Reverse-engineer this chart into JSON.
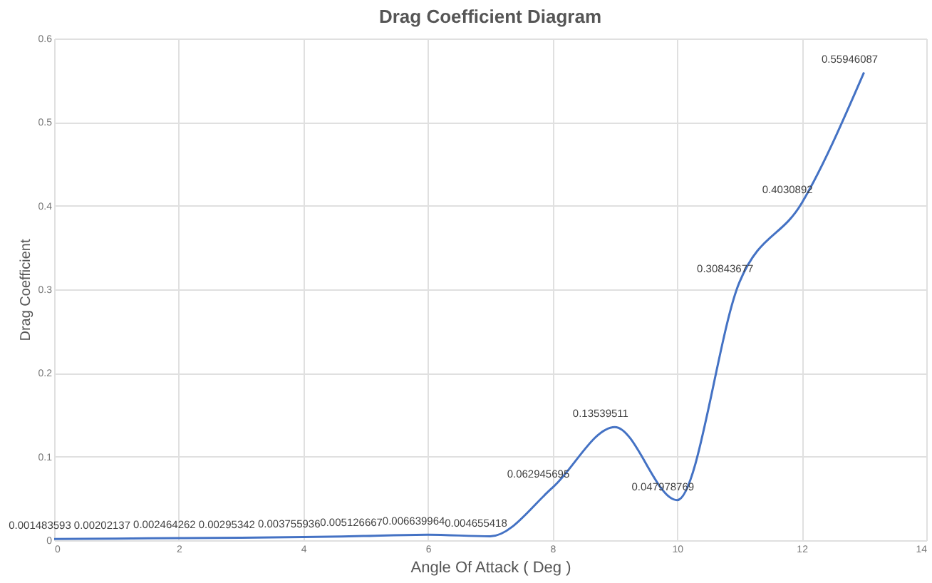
{
  "chart_data": {
    "type": "line",
    "title": "Drag Coefficient Diagram",
    "xlabel": "Angle Of Attack ( Deg )",
    "ylabel": "Drag Coefficient",
    "x": [
      0,
      1,
      2,
      3,
      4,
      5,
      6,
      7,
      8,
      9,
      10,
      11,
      12,
      13
    ],
    "series": [
      {
        "color": "#4472c4",
        "values": [
          0.001483593,
          0.00202137,
          0.002464262,
          0.00295342,
          0.003755936,
          0.005126667,
          0.006639964,
          0.004655418,
          0.062945695,
          0.13539511,
          0.047978769,
          0.30843677,
          0.4030892,
          0.55946087
        ]
      }
    ],
    "xlim": [
      0,
      14
    ],
    "xticks": [
      0,
      2,
      4,
      6,
      8,
      10,
      12,
      14
    ],
    "ylim": [
      0,
      0.6
    ],
    "yticks": [
      0,
      0.1,
      0.2,
      0.3,
      0.4,
      0.5,
      0.6
    ],
    "grid": true,
    "data_labels": true,
    "legend": false
  }
}
